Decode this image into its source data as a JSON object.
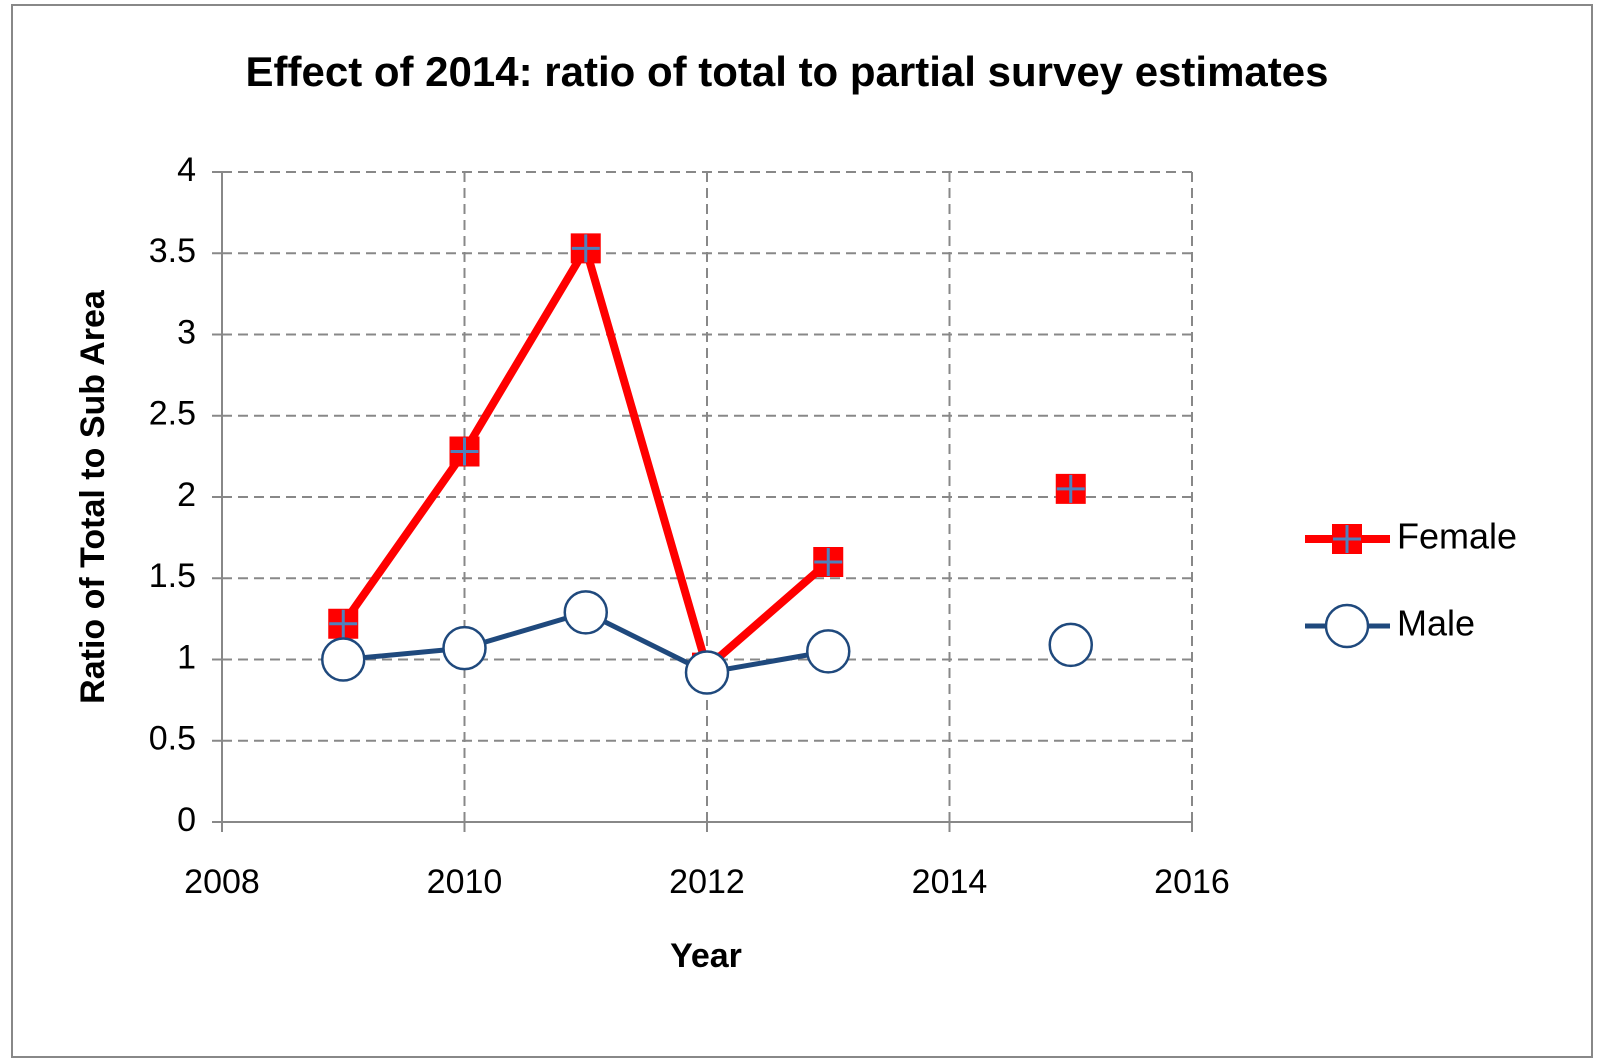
{
  "chart_data": {
    "type": "line",
    "title": "Effect of 2014: ratio of total to partial survey estimates",
    "x_label": "Year",
    "y_label": "Ratio of Total to Sub Area",
    "x": [
      2009,
      2010,
      2011,
      2012,
      2013,
      2014,
      2015
    ],
    "series": [
      {
        "name": "Female",
        "color": "#ff0000",
        "marker": "square",
        "values": [
          1.22,
          2.28,
          3.53,
          0.95,
          1.6,
          null,
          2.05
        ]
      },
      {
        "name": "Male",
        "color": "#1f497d",
        "marker": "circle",
        "values": [
          1.0,
          1.07,
          1.29,
          0.92,
          1.05,
          null,
          1.09
        ]
      }
    ],
    "xlim": [
      2008,
      2016
    ],
    "xticks": [
      2008,
      2010,
      2012,
      2014,
      2016
    ],
    "ylim": [
      0,
      4
    ],
    "yticks": [
      0,
      0.5,
      1,
      1.5,
      2,
      2.5,
      3,
      3.5,
      4
    ],
    "grid": true,
    "legend": "right"
  }
}
